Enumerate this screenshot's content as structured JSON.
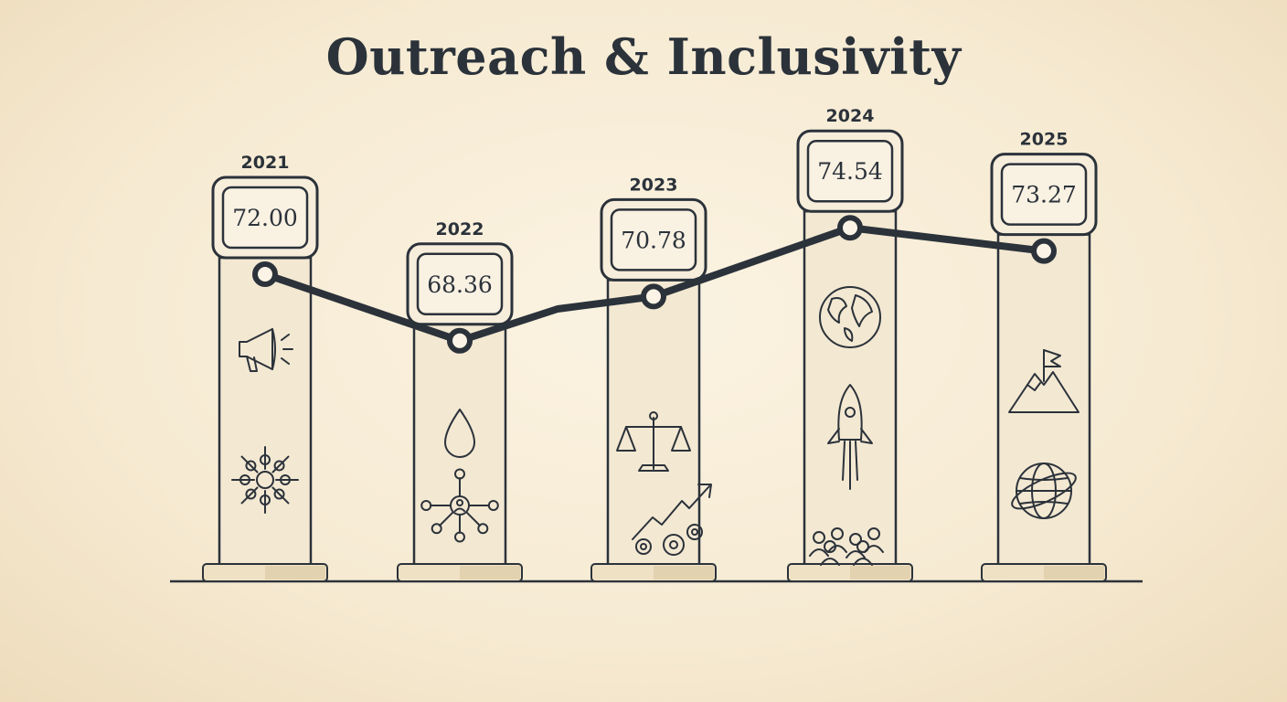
{
  "title": "Outreach & Inclusivity",
  "chart_data": {
    "type": "line",
    "title": "Outreach & Inclusivity",
    "categories": [
      "2021",
      "2022",
      "2023",
      "2024",
      "2025"
    ],
    "values": [
      72.0,
      68.36,
      70.78,
      74.54,
      73.27
    ],
    "value_labels": [
      "72.00",
      "68.36",
      "70.78",
      "74.54",
      "73.27"
    ],
    "xlabel": "",
    "ylabel": "",
    "grid": false,
    "legend": "none",
    "colors": {
      "line": "#2b323a",
      "pillar": "#f3e8d2",
      "background": "#f8eedb"
    },
    "pillar_icons": [
      [
        "megaphone-icon",
        "joined-hands-icon"
      ],
      [
        "water-drop-icon",
        "network-icon"
      ],
      [
        "scales-icon",
        "growth-gears-icon"
      ],
      [
        "globe-icon",
        "rocket-icon",
        "crowd-icon"
      ],
      [
        "mountain-flag-icon",
        "globe-orbit-icon"
      ]
    ]
  }
}
